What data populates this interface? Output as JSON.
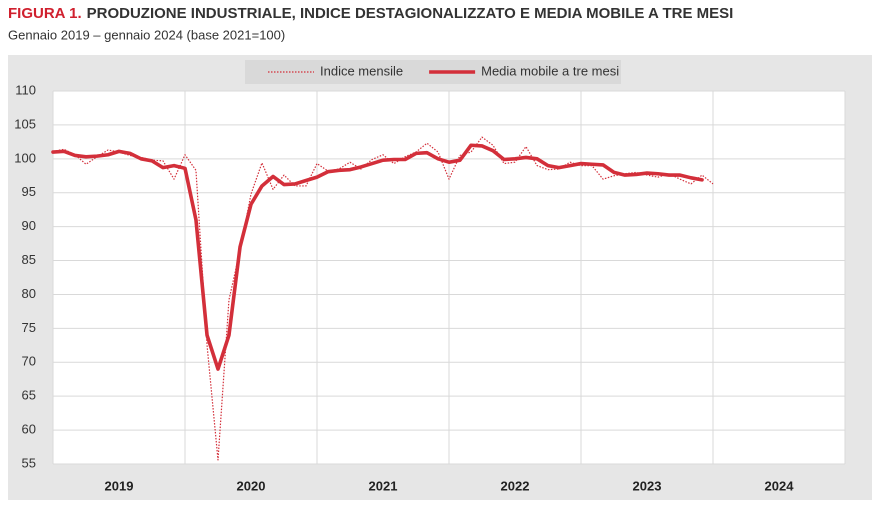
{
  "chart_data": {
    "type": "line",
    "figure_label": "FIGURA 1.",
    "title": "PRODUZIONE INDUSTRIALE, INDICE DESTAGIONALIZZATO E MEDIA MOBILE A TRE MESI",
    "subtitle": "Gennaio 2019 – gennaio 2024 (base 2021=100)",
    "x": [
      2019,
      2019.083,
      2019.167,
      2019.25,
      2019.333,
      2019.417,
      2019.5,
      2019.583,
      2019.667,
      2019.75,
      2019.833,
      2019.917,
      2020,
      2020.083,
      2020.167,
      2020.25,
      2020.333,
      2020.417,
      2020.5,
      2020.583,
      2020.667,
      2020.75,
      2020.833,
      2020.917,
      2021,
      2021.083,
      2021.167,
      2021.25,
      2021.333,
      2021.417,
      2021.5,
      2021.583,
      2021.667,
      2021.75,
      2021.833,
      2021.917,
      2022,
      2022.083,
      2022.167,
      2022.25,
      2022.333,
      2022.417,
      2022.5,
      2022.583,
      2022.667,
      2022.75,
      2022.833,
      2022.917,
      2023,
      2023.083,
      2023.167,
      2023.25,
      2023.333,
      2023.417,
      2023.5,
      2023.583,
      2023.667,
      2023.75,
      2023.833,
      2023.917,
      2024
    ],
    "series": [
      {
        "name": "Indice mensile",
        "color": "#d32f3a",
        "line_style": "dotted",
        "values": [
          101.1,
          101.4,
          100.6,
          99.2,
          100.3,
          101.3,
          101.0,
          100.5,
          100.2,
          99.8,
          99.7,
          97.0,
          100.6,
          98.3,
          72.5,
          55.6,
          79.2,
          86.5,
          94.8,
          99.4,
          95.5,
          97.6,
          96.0,
          96.0,
          99.3,
          98.2,
          98.5,
          99.5,
          98.5,
          99.9,
          100.6,
          99.3,
          100.3,
          101.0,
          102.3,
          101.0,
          97.0,
          100.5,
          101.0,
          103.2,
          102.0,
          99.3,
          99.5,
          101.8,
          99.0,
          98.4,
          98.5,
          99.5,
          99.0,
          99.0,
          97.0,
          97.5,
          97.8,
          98.0,
          97.6,
          97.3,
          97.8,
          97.0,
          96.3,
          97.6,
          96.3
        ]
      },
      {
        "name": "Media mobile a tre mesi",
        "color": "#d32f3a",
        "line_style": "solid",
        "values": [
          101.0,
          101.1,
          100.5,
          100.3,
          100.4,
          100.6,
          101.1,
          100.8,
          100.0,
          99.7,
          98.7,
          99.0,
          98.6,
          91.0,
          74.0,
          69.0,
          74.0,
          87.0,
          93.3,
          96.0,
          97.4,
          96.2,
          96.3,
          96.8,
          97.3,
          98.1,
          98.3,
          98.4,
          98.8,
          99.3,
          99.8,
          99.9,
          99.9,
          100.8,
          100.9,
          100.0,
          99.5,
          99.8,
          102.0,
          101.9,
          101.2,
          99.9,
          100.0,
          100.2,
          100.0,
          99.0,
          98.7,
          99.0,
          99.3,
          99.2,
          99.1,
          98.0,
          97.6,
          97.7,
          97.9,
          97.8,
          97.6,
          97.6,
          97.2,
          96.9,
          null
        ]
      }
    ],
    "xlim": [
      2019,
      2025
    ],
    "xticks": [
      {
        "value": 2019.5,
        "label": "2019"
      },
      {
        "value": 2020.5,
        "label": "2020"
      },
      {
        "value": 2021.5,
        "label": "2021"
      },
      {
        "value": 2022.5,
        "label": "2022"
      },
      {
        "value": 2023.5,
        "label": "2023"
      },
      {
        "value": 2024.5,
        "label": "2024"
      }
    ],
    "ylim": [
      55,
      110
    ],
    "yticks": [
      55,
      60,
      65,
      70,
      75,
      80,
      85,
      90,
      95,
      100,
      105,
      110
    ],
    "grid": true,
    "legend": "top"
  }
}
